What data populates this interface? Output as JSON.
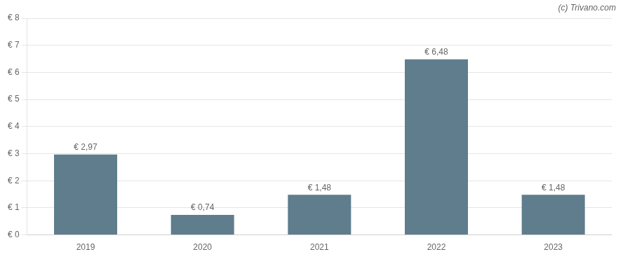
{
  "chart_data": {
    "type": "bar",
    "categories": [
      "2019",
      "2020",
      "2021",
      "2022",
      "2023"
    ],
    "values": [
      2.97,
      0.74,
      1.48,
      6.48,
      1.48
    ],
    "value_labels": [
      "€ 2,97",
      "€ 0,74",
      "€ 1,48",
      "€ 6,48",
      "€ 1,48"
    ],
    "data_labels": true,
    "color": "#5f7d8c",
    "ylim": [
      0,
      8
    ],
    "yticks": [
      {
        "value": 0,
        "label": "€ 0"
      },
      {
        "value": 1,
        "label": "€ 1"
      },
      {
        "value": 2,
        "label": "€ 2"
      },
      {
        "value": 3,
        "label": "€ 3"
      },
      {
        "value": 4,
        "label": "€ 4"
      },
      {
        "value": 5,
        "label": "€ 5"
      },
      {
        "value": 6,
        "label": "€ 6"
      },
      {
        "value": 7,
        "label": "€ 7"
      },
      {
        "value": 8,
        "label": "€ 8"
      }
    ],
    "grid": true,
    "annotations": [
      "(c) Trivano.com"
    ]
  }
}
